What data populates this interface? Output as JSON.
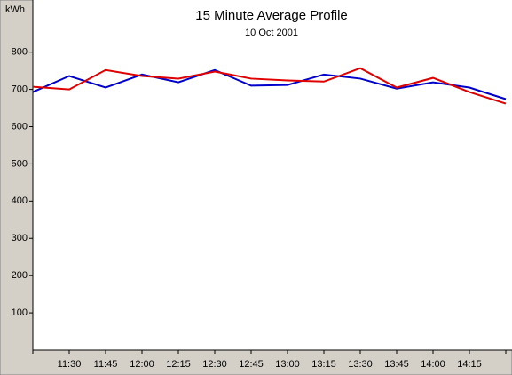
{
  "chart_data": {
    "type": "line",
    "title": "15 Minute Average Profile",
    "subtitle": "10 Oct 2001",
    "y_label": "kWh",
    "categories": [
      null,
      "11:30",
      "11:45",
      "12:00",
      "12:15",
      "12:30",
      "12:45",
      "13:00",
      "13:15",
      "13:30",
      "13:45",
      "14:00",
      "14:15",
      null
    ],
    "series": [
      {
        "color": "#0000cc",
        "values": [
          693,
          736,
          705,
          740,
          719,
          752,
          710,
          712,
          740,
          729,
          702,
          719,
          705,
          674
        ]
      },
      {
        "color": "#e00000",
        "values": [
          707,
          700,
          752,
          736,
          729,
          748,
          729,
          724,
          721,
          757,
          705,
          731,
          693,
          662
        ]
      }
    ],
    "ylim": [
      0,
      940
    ],
    "yticks": [
      100,
      200,
      300,
      400,
      500,
      600,
      700,
      800
    ],
    "grid": false
  }
}
